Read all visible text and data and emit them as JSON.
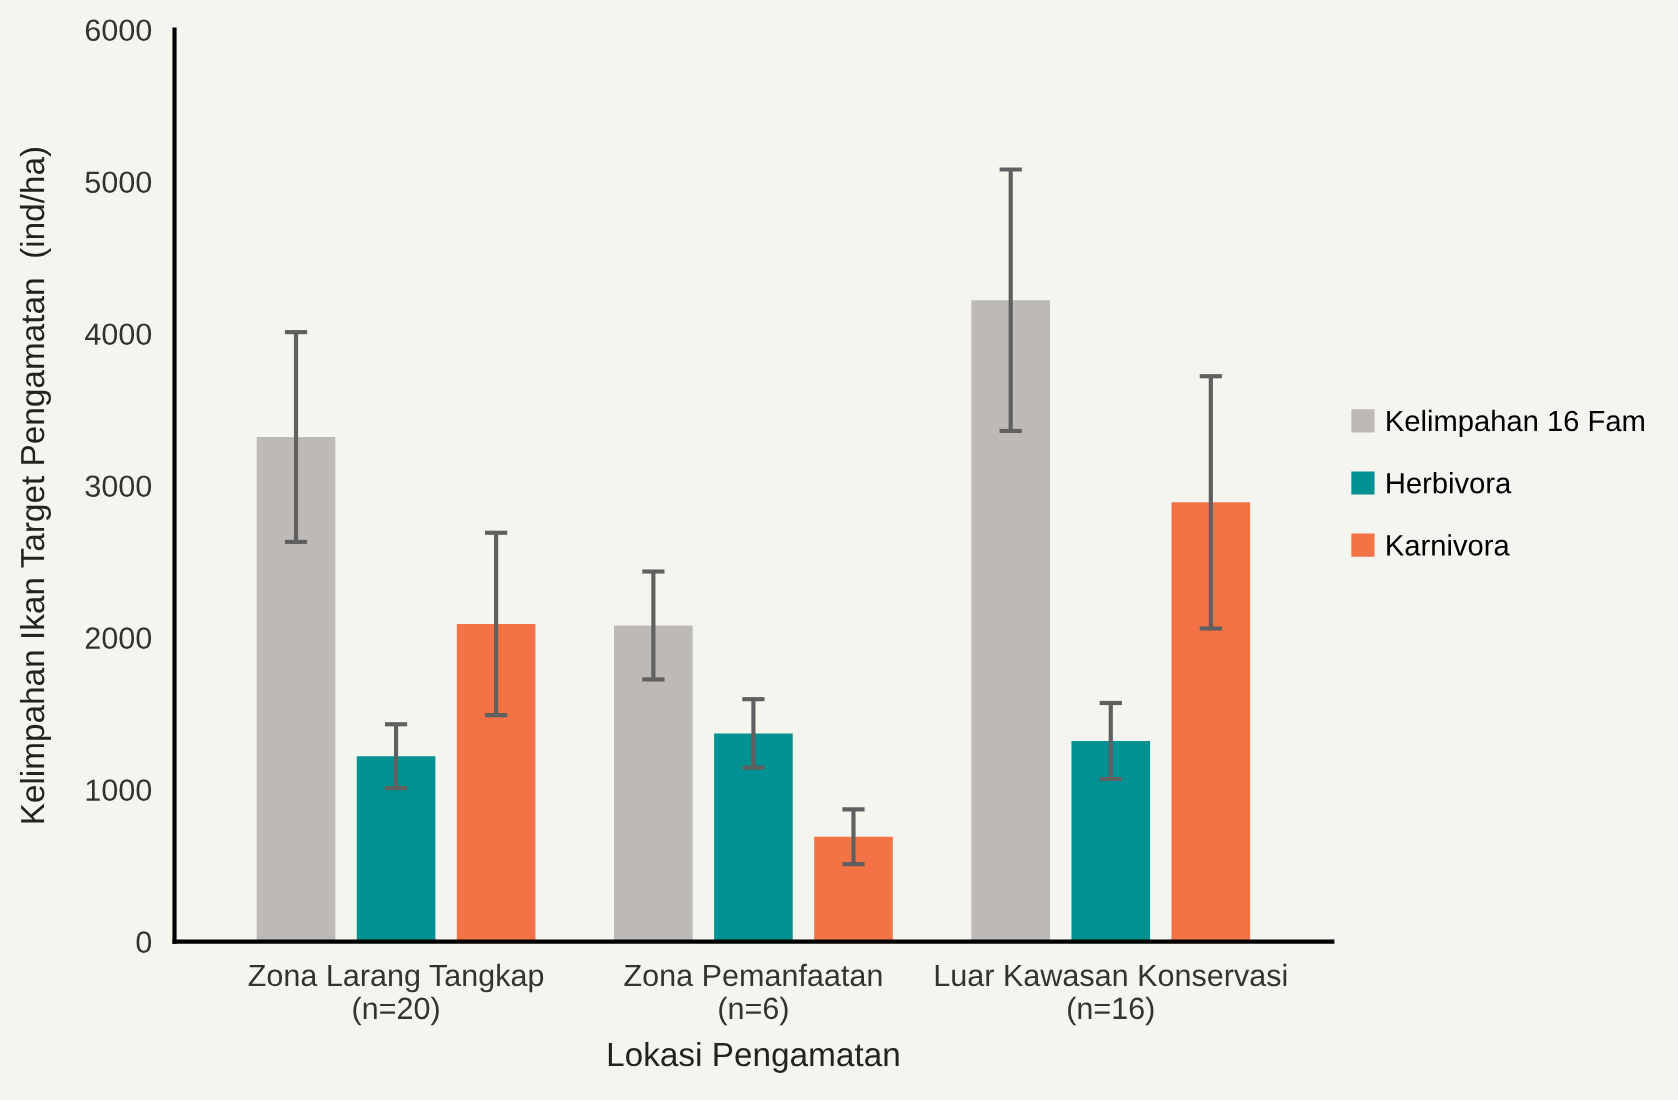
{
  "chart_data": {
    "type": "bar",
    "xlabel": "Lokasi Pengamatan",
    "ylabel": "Kelimpahan Ikan Target Pengamatan  (ind/ha)",
    "categories": [
      "Zona Larang Tangkap\n(n=20)",
      "Zona Pemanfaatan\n(n=6)",
      "Luar Kawasan Konservasi\n(n=16)"
    ],
    "series": [
      {
        "name": "Kelimpahan 16 Fam",
        "color": "#bdb9b7",
        "values": [
          3320,
          2080,
          4220
        ],
        "errors": [
          690,
          355,
          860
        ]
      },
      {
        "name": "Herbivora",
        "color": "#009193",
        "values": [
          1220,
          1370,
          1320
        ],
        "errors": [
          210,
          225,
          250
        ]
      },
      {
        "name": "Karnivora",
        "color": "#f37346",
        "values": [
          2090,
          690,
          2890
        ],
        "errors": [
          600,
          180,
          830
        ]
      }
    ],
    "ylim": [
      0,
      6000
    ],
    "yticks": [
      0,
      1000,
      2000,
      3000,
      4000,
      5000,
      6000
    ],
    "grid": false,
    "legend": "right"
  }
}
